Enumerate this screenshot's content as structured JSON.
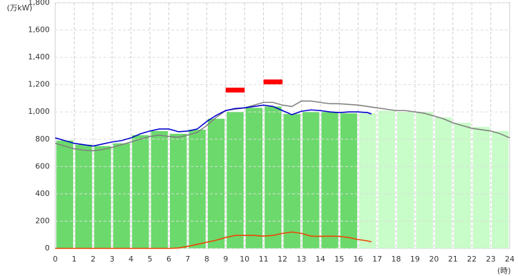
{
  "chart_data": {
    "type": "bar-line",
    "y_unit": "(万kW)",
    "x_unit": "(時)",
    "xlim": [
      0,
      24
    ],
    "xticks": [
      0,
      1,
      2,
      3,
      4,
      5,
      6,
      7,
      8,
      9,
      10,
      11,
      12,
      13,
      14,
      15,
      16,
      17,
      18,
      19,
      20,
      21,
      22,
      23,
      24
    ],
    "ylim": [
      0,
      1800
    ],
    "yticks": [
      0,
      200,
      400,
      600,
      800,
      {
        "value": 1000,
        "label": "1,000"
      },
      {
        "value": 1200,
        "label": "1,200"
      },
      {
        "value": 1400,
        "label": "1,400"
      },
      {
        "value": 1600,
        "label": "1,600"
      },
      {
        "value": 1800,
        "label": "1,800"
      }
    ],
    "grid": true,
    "bars": [
      {
        "color": "#6cd96c",
        "values": [
          790,
          760,
          750,
          770,
          830,
          860,
          840,
          870,
          950,
          1000,
          1030,
          1040,
          985,
          1000,
          1000,
          990,
          null,
          null,
          null,
          null,
          null,
          null,
          null,
          null
        ]
      },
      {
        "color": "#c8fcc8",
        "values": [
          null,
          null,
          null,
          null,
          null,
          null,
          null,
          null,
          null,
          null,
          null,
          null,
          null,
          null,
          null,
          null,
          990,
          1010,
          1000,
          1000,
          960,
          920,
          890,
          860
        ]
      }
    ],
    "lines": [
      {
        "color": "#808080",
        "x": [
          0,
          0.5,
          1,
          1.5,
          2,
          2.5,
          3,
          3.5,
          4,
          4.5,
          5,
          5.5,
          6,
          6.5,
          7,
          7.5,
          8,
          8.5,
          9,
          9.5,
          10,
          10.5,
          11,
          11.5,
          12,
          12.5,
          13,
          13.5,
          14,
          14.5,
          15,
          15.5,
          16,
          16.5,
          17,
          17.5,
          18,
          18.5,
          19,
          19.5,
          20,
          20.5,
          21,
          21.5,
          22,
          22.5,
          23,
          23.5,
          24
        ],
        "values": [
          770,
          750,
          730,
          720,
          715,
          725,
          740,
          760,
          780,
          800,
          820,
          830,
          820,
          815,
          830,
          850,
          900,
          960,
          1010,
          1020,
          1030,
          1050,
          1070,
          1070,
          1050,
          1040,
          1080,
          1080,
          1070,
          1060,
          1060,
          1055,
          1050,
          1040,
          1030,
          1020,
          1010,
          1010,
          1000,
          990,
          970,
          950,
          920,
          900,
          880,
          870,
          860,
          840,
          810
        ]
      },
      {
        "color": "#0000cc",
        "x": [
          0,
          0.5,
          1,
          1.5,
          2,
          2.5,
          3,
          3.5,
          4,
          4.5,
          5,
          5.5,
          6,
          6.5,
          7,
          7.5,
          8,
          8.5,
          9,
          9.5,
          10,
          10.5,
          11,
          11.5,
          12,
          12.5,
          13,
          13.5,
          14,
          14.5,
          15,
          15.5,
          16,
          16.5,
          16.7
        ],
        "values": [
          810,
          790,
          770,
          760,
          750,
          765,
          780,
          790,
          810,
          840,
          860,
          875,
          875,
          855,
          860,
          875,
          930,
          975,
          1010,
          1025,
          1030,
          1040,
          1050,
          1040,
          1010,
          980,
          1005,
          1015,
          1010,
          1000,
          995,
          1000,
          1000,
          995,
          985
        ]
      },
      {
        "color": "#ee4400",
        "x": [
          0,
          0.5,
          1,
          1.5,
          2,
          2.5,
          3,
          3.5,
          4,
          4.5,
          5,
          5.5,
          6,
          6.5,
          7,
          7.5,
          8,
          8.5,
          9,
          9.5,
          10,
          10.5,
          11,
          11.5,
          12,
          12.5,
          13,
          13.5,
          14,
          14.5,
          15,
          15.5,
          16,
          16.5,
          16.7
        ],
        "values": [
          0,
          0,
          0,
          0,
          0,
          0,
          0,
          0,
          0,
          0,
          0,
          0,
          0,
          3,
          15,
          30,
          45,
          60,
          80,
          95,
          95,
          95,
          90,
          95,
          110,
          120,
          110,
          90,
          88,
          90,
          88,
          80,
          65,
          55,
          48
        ]
      }
    ],
    "peak_markers": {
      "color": "#ff0000",
      "ranges": [
        {
          "x": [
            9,
            10
          ],
          "value": 1160
        },
        {
          "x": [
            11,
            12
          ],
          "value": 1220
        }
      ]
    }
  }
}
